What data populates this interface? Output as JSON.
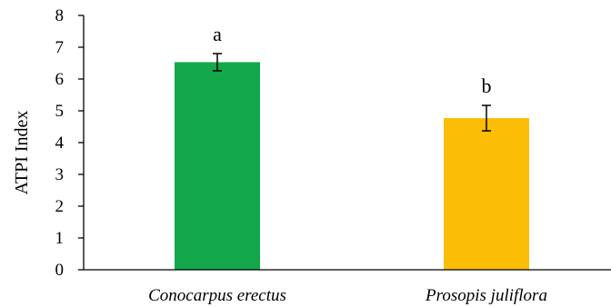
{
  "chart_data": {
    "type": "bar",
    "title": "",
    "xlabel": "",
    "ylabel": "ATPI Index",
    "ylim": [
      0,
      8
    ],
    "yticks": [
      0,
      1,
      2,
      3,
      4,
      5,
      6,
      7,
      8
    ],
    "grid": false,
    "categories": [
      "Conocarpus erectus",
      "Prosopis juliflora"
    ],
    "values": [
      6.53,
      4.77
    ],
    "error": [
      0.27,
      0.4
    ],
    "significance_labels": [
      "a",
      "b"
    ],
    "colors": [
      "#12a84b",
      "#fbbd05"
    ],
    "error_bar_color": "#000000"
  }
}
